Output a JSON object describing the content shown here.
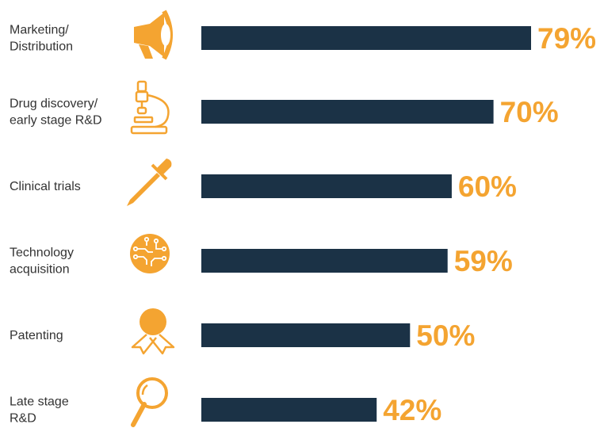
{
  "colors": {
    "bar": "#1b3246",
    "accent": "#f4a431",
    "text": "#333333"
  },
  "chart_data": {
    "type": "bar",
    "orientation": "horizontal",
    "categories": [
      [
        "Marketing/",
        "Distribution"
      ],
      [
        "Drug discovery/",
        "early stage R&D"
      ],
      [
        "Clinical trials"
      ],
      [
        "Technology",
        "acquisition"
      ],
      [
        "Patenting"
      ],
      [
        "Late stage",
        "R&D"
      ]
    ],
    "values": [
      79,
      70,
      60,
      59,
      50,
      42
    ],
    "value_labels": [
      "79%",
      "70%",
      "60%",
      "59%",
      "50%",
      "42%"
    ],
    "icons": [
      "megaphone-icon",
      "microscope-icon",
      "pipette-icon",
      "circuit-icon",
      "award-ribbon-icon",
      "magnifier-icon"
    ],
    "xlim": [
      0,
      100
    ],
    "grid": false,
    "legend": "none"
  }
}
